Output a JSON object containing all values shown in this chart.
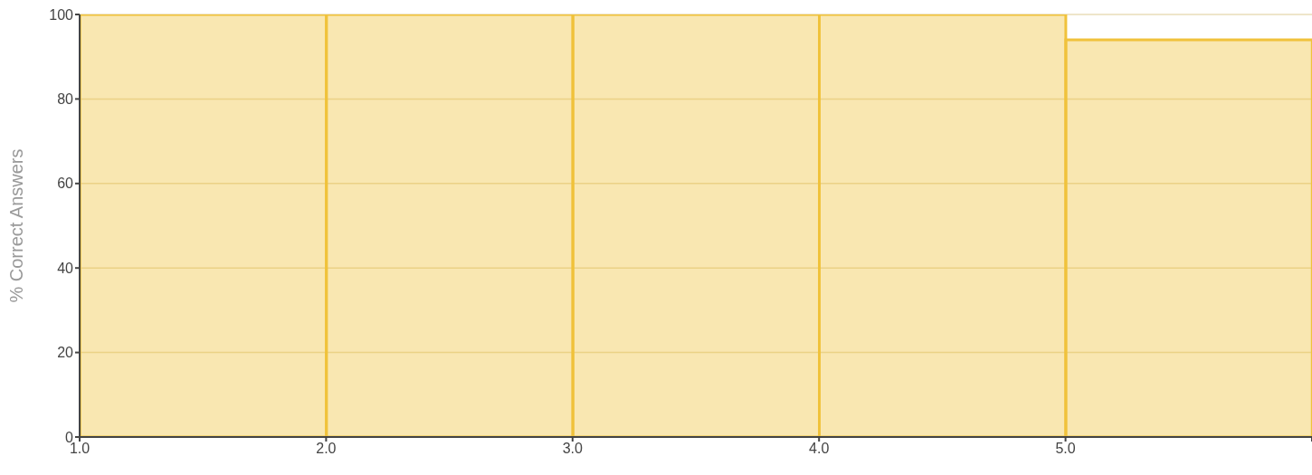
{
  "chart_data": {
    "type": "histogram",
    "ylabel": "% Correct Answers",
    "bins": [
      1,
      2,
      3,
      4,
      5,
      6
    ],
    "values": [
      100,
      100,
      100,
      100,
      94
    ],
    "color": "#f0c23b",
    "xlim": [
      1,
      6
    ],
    "xticks": [
      {
        "value": 1,
        "label": "1.0"
      },
      {
        "value": 2,
        "label": "2.0"
      },
      {
        "value": 3,
        "label": "3.0"
      },
      {
        "value": 4,
        "label": "4.0"
      },
      {
        "value": 5,
        "label": "5.0"
      },
      {
        "value": 6,
        "label": null
      }
    ],
    "ylim": [
      0,
      100
    ],
    "yticks": [
      0,
      20,
      40,
      60,
      80,
      100
    ],
    "grid": "y"
  }
}
